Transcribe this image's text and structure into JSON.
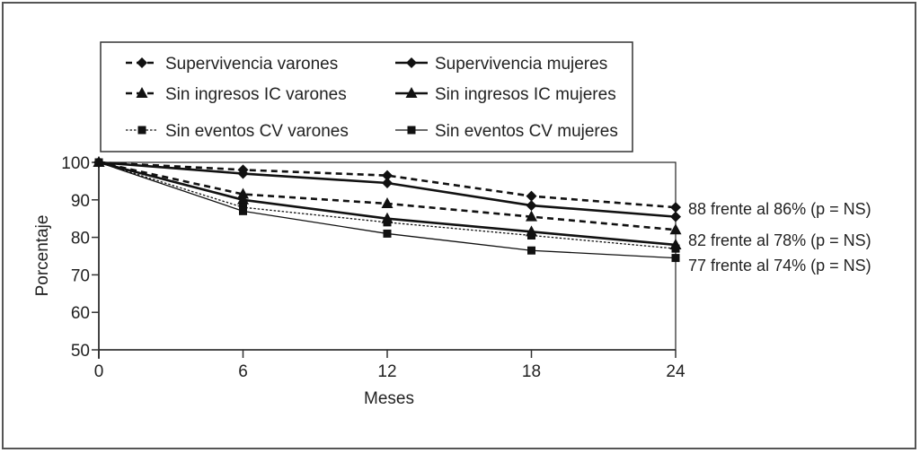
{
  "chart_data": {
    "type": "line",
    "title": "",
    "xlabel": "Meses",
    "ylabel": "Porcentaje",
    "x": [
      0,
      6,
      12,
      18,
      24
    ],
    "xticks": [
      "0",
      "6",
      "12",
      "18",
      "24"
    ],
    "yticks": [
      "50",
      "60",
      "70",
      "80",
      "90",
      "100"
    ],
    "xlim": [
      0,
      24
    ],
    "ylim": [
      50,
      100
    ],
    "grid": false,
    "legend_position": "top",
    "series": [
      {
        "name": "Supervivencia varones",
        "style": "dashed",
        "marker": "diamond",
        "values": [
          100,
          98,
          96.5,
          91,
          88
        ]
      },
      {
        "name": "Supervivencia mujeres",
        "style": "solid",
        "marker": "diamond",
        "values": [
          100,
          97,
          94.5,
          88.5,
          85.5
        ]
      },
      {
        "name": "Sin ingresos IC varones",
        "style": "dashed",
        "marker": "triangle",
        "values": [
          100,
          91.5,
          89,
          85.5,
          82
        ]
      },
      {
        "name": "Sin ingresos IC mujeres",
        "style": "solid",
        "marker": "triangle",
        "values": [
          100,
          90,
          85,
          81.5,
          78
        ]
      },
      {
        "name": "Sin eventos CV varones",
        "style": "dotted",
        "marker": "square",
        "values": [
          100,
          88,
          84,
          80.5,
          77
        ]
      },
      {
        "name": "Sin eventos CV mujeres",
        "style": "thin",
        "marker": "square",
        "values": [
          100,
          87,
          81,
          76.5,
          74.5
        ]
      }
    ],
    "annotations": [
      "88 frente al 86% (p = NS)",
      "82 frente al 78% (p = NS)",
      "77 frente al 74% (p = NS)"
    ]
  }
}
